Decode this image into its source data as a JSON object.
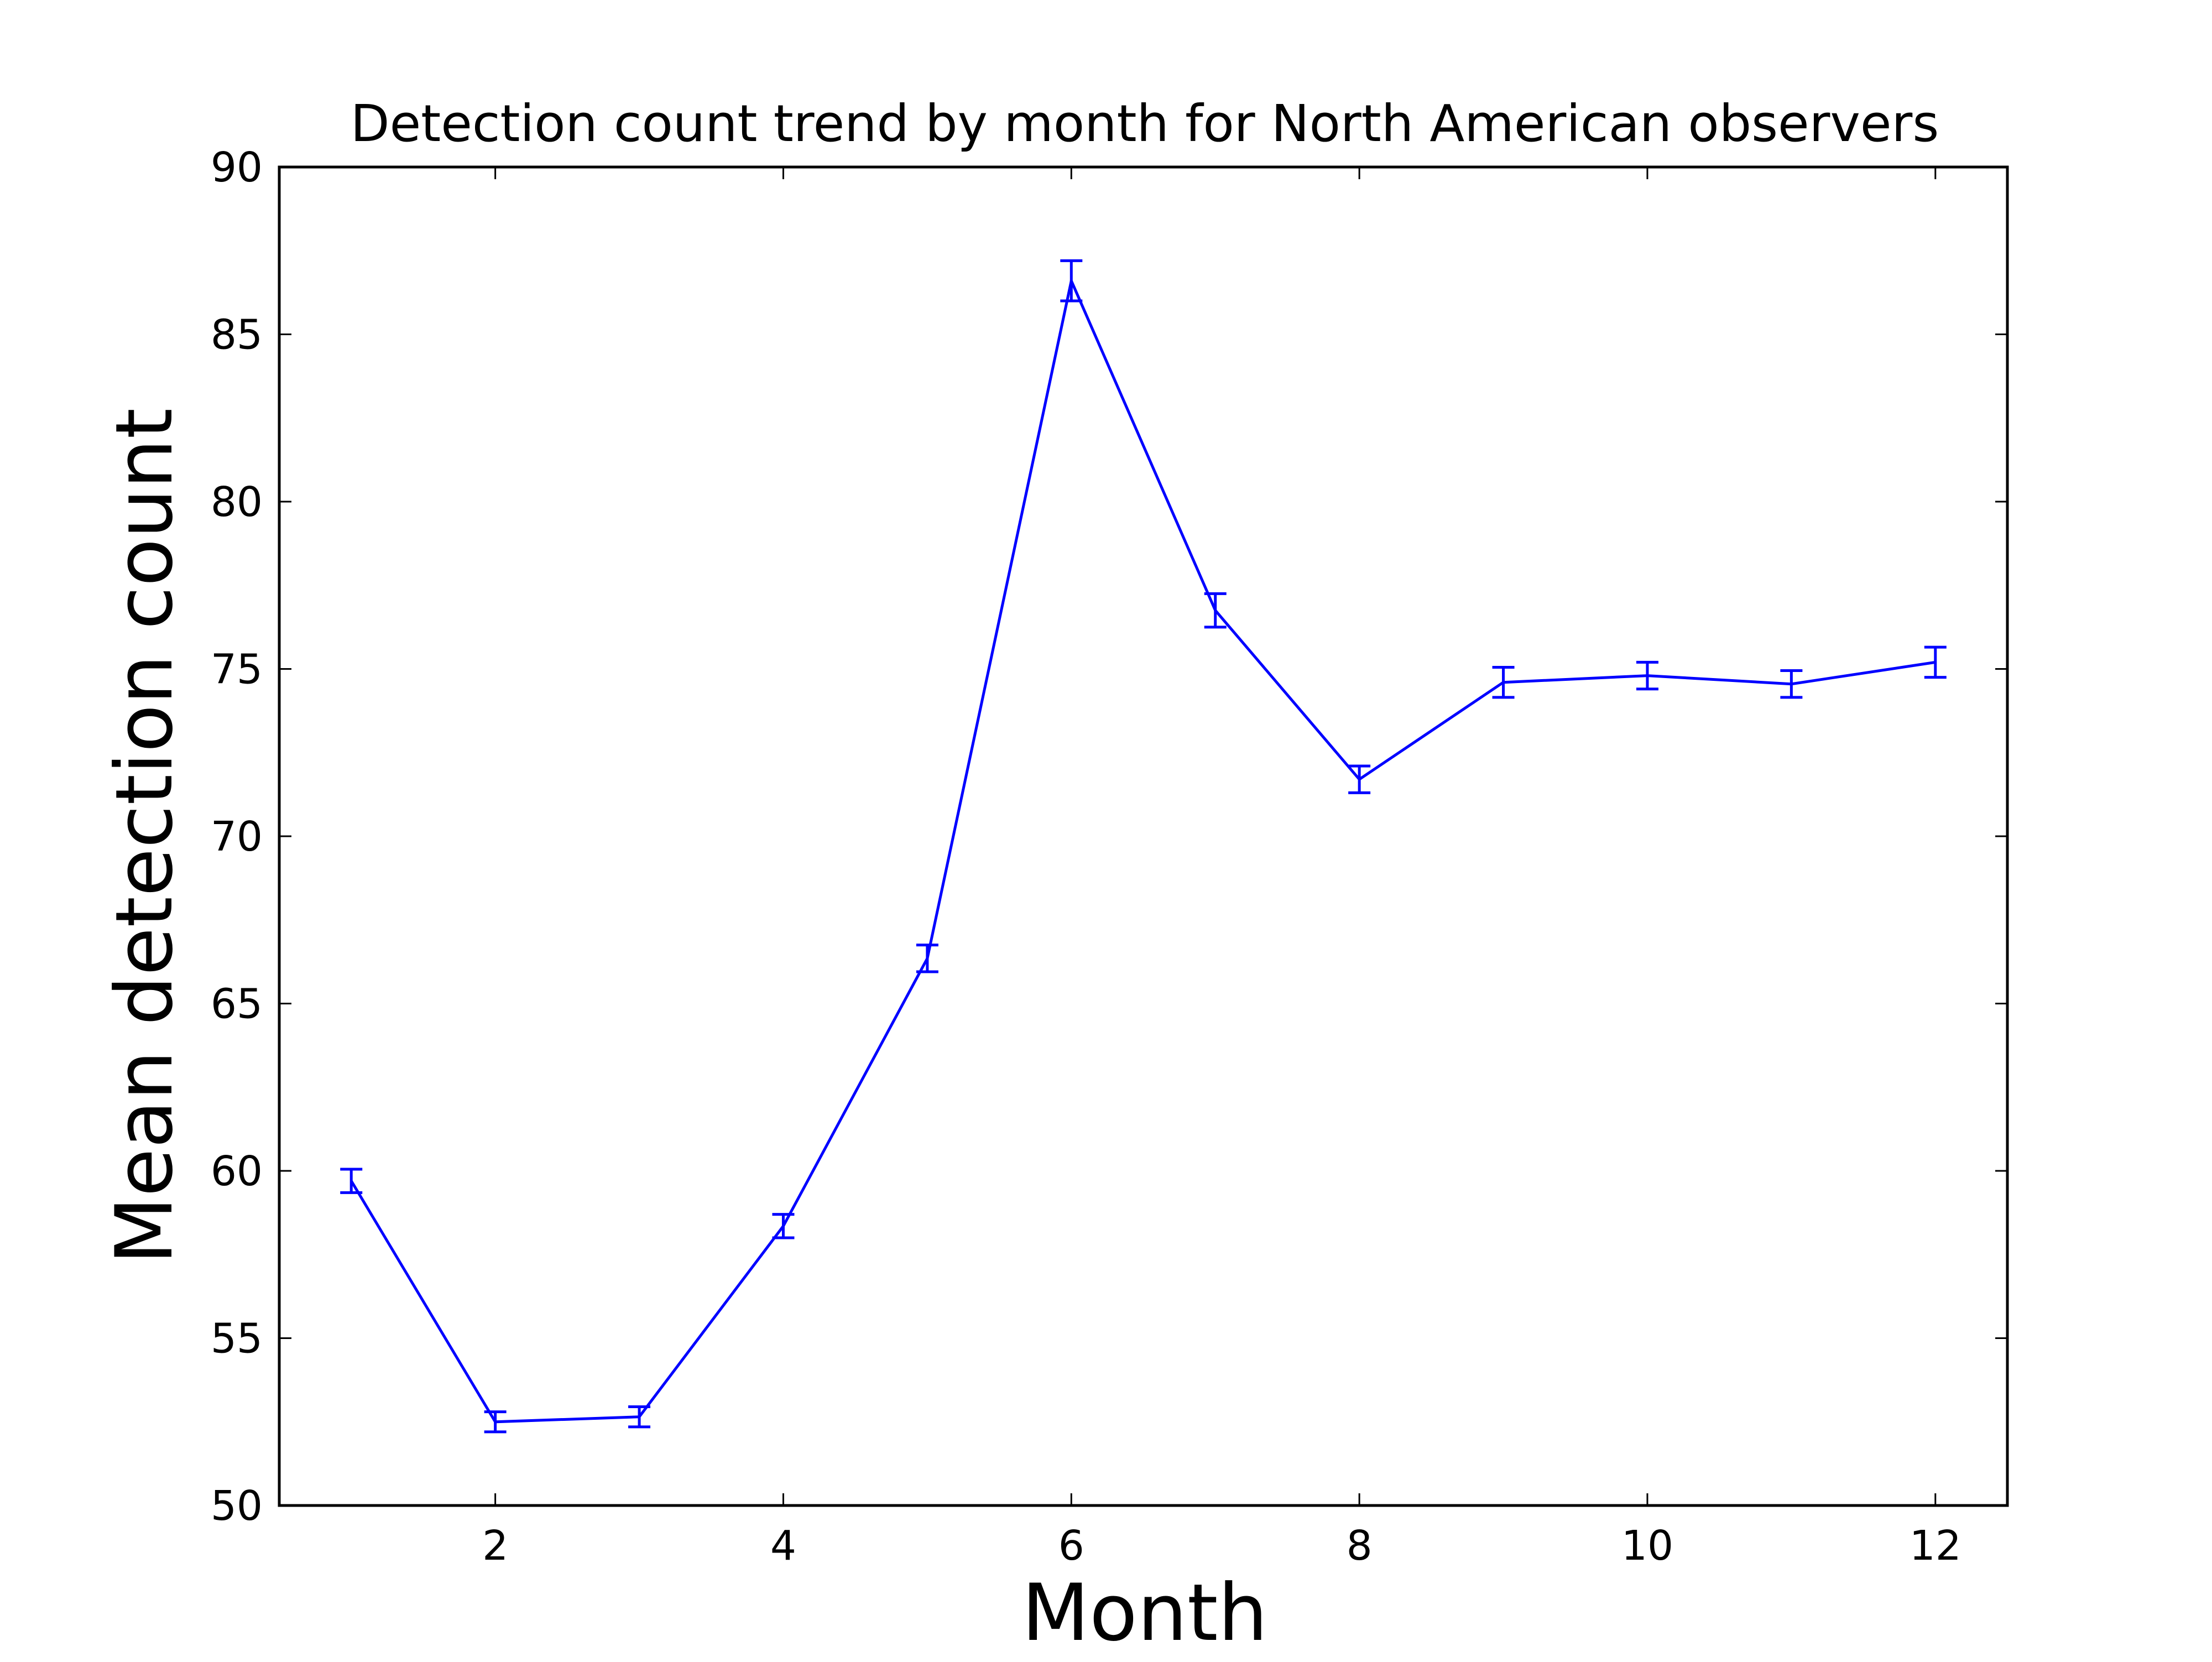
{
  "chart_data": {
    "type": "line",
    "title": "Detection count trend by month for North American observers",
    "xlabel": "Month",
    "ylabel": "Mean detection count",
    "xlim": [
      0.5,
      12.5
    ],
    "ylim": [
      50,
      90
    ],
    "xticks": [
      2,
      4,
      6,
      8,
      10,
      12
    ],
    "yticks": [
      50,
      55,
      60,
      65,
      70,
      75,
      80,
      85,
      90
    ],
    "grid": false,
    "legend": "none",
    "line_color": "#0000ff",
    "axes_color": "#000000",
    "error_bars": true,
    "series": [
      {
        "x": [
          1,
          2,
          3,
          4,
          5,
          6,
          7,
          8,
          9,
          10,
          11,
          12
        ],
        "y": [
          59.7,
          52.5,
          52.65,
          58.35,
          66.35,
          86.6,
          76.75,
          71.7,
          74.6,
          74.8,
          74.55,
          75.2
        ],
        "yerr": [
          0.35,
          0.3,
          0.3,
          0.35,
          0.4,
          0.6,
          0.5,
          0.4,
          0.45,
          0.4,
          0.4,
          0.45
        ]
      }
    ]
  }
}
